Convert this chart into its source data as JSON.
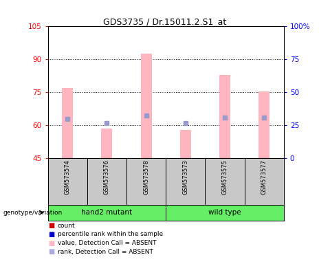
{
  "title": "GDS3735 / Dr.15011.2.S1_at",
  "samples": [
    "GSM573574",
    "GSM573576",
    "GSM573578",
    "GSM573573",
    "GSM573575",
    "GSM573577"
  ],
  "pink_bar_values": [
    77.0,
    58.5,
    92.5,
    58.0,
    83.0,
    75.5
  ],
  "blue_square_values": [
    63.0,
    61.0,
    64.5,
    61.0,
    63.5,
    63.5
  ],
  "ylim_left": [
    45,
    105
  ],
  "ylim_right": [
    0,
    100
  ],
  "yticks_left": [
    45,
    60,
    75,
    90,
    105
  ],
  "yticks_right": [
    0,
    25,
    50,
    75,
    100
  ],
  "legend_items": [
    {
      "label": "count",
      "color": "#CC0000"
    },
    {
      "label": "percentile rank within the sample",
      "color": "#0000CC"
    },
    {
      "label": "value, Detection Call = ABSENT",
      "color": "#FFB6C1"
    },
    {
      "label": "rank, Detection Call = ABSENT",
      "color": "#AAAADD"
    }
  ],
  "pink_bar_color": "#FFB6C1",
  "blue_square_color": "#9999CC",
  "bar_bottom": 45,
  "background_color": "#FFFFFF",
  "plot_bg_color": "#FFFFFF",
  "sample_bg_color": "#C8C8C8",
  "group_bg_color": "#66EE66",
  "group_label": "genotype/variation",
  "groups": [
    {
      "label": "hand2 mutant",
      "start": 0,
      "end": 2
    },
    {
      "label": "wild type",
      "start": 3,
      "end": 5
    }
  ]
}
